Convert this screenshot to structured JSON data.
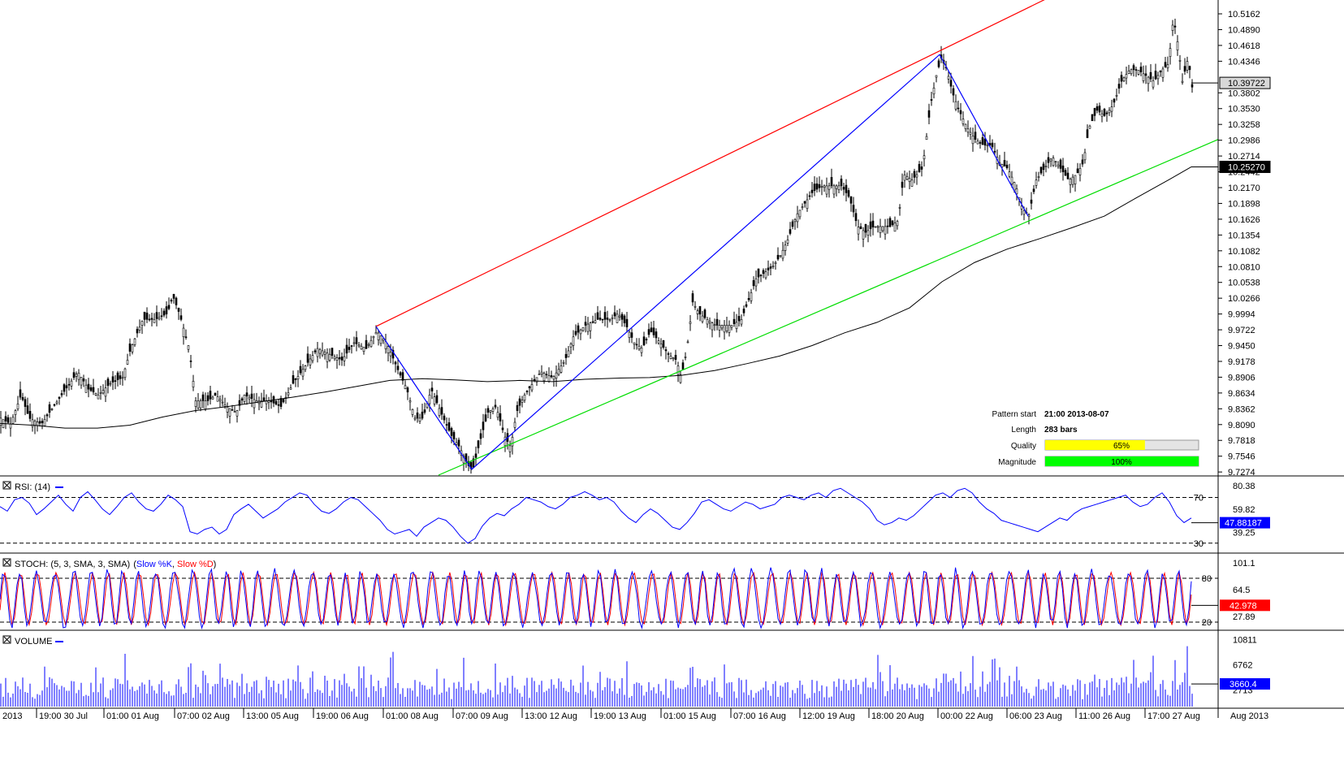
{
  "chart_data": [
    {
      "type": "candlestick",
      "panel": "price",
      "yaxis_ticks": [
        "10.5162",
        "10.4890",
        "10.4618",
        "10.4346",
        "10.3802",
        "10.3530",
        "10.3258",
        "10.2986",
        "10.2714",
        "10.2442",
        "10.2170",
        "10.1898",
        "10.1626",
        "10.1354",
        "10.1082",
        "10.0810",
        "10.0538",
        "10.0266",
        "9.9994",
        "9.9722",
        "9.9450",
        "9.9178",
        "9.8906",
        "9.8634",
        "9.8362",
        "9.8090",
        "9.7818",
        "9.7546",
        "9.7274"
      ],
      "ylim": [
        9.722,
        10.54
      ],
      "last_price": "10.39722",
      "ma_value": "10.25270",
      "path": [
        [
          0,
          9.82
        ],
        [
          12,
          9.81
        ],
        [
          25,
          9.86
        ],
        [
          35,
          9.82
        ],
        [
          50,
          9.81
        ],
        [
          65,
          9.84
        ],
        [
          80,
          9.87
        ],
        [
          95,
          9.9
        ],
        [
          108,
          9.87
        ],
        [
          120,
          9.86
        ],
        [
          135,
          9.88
        ],
        [
          150,
          9.89
        ],
        [
          160,
          9.94
        ],
        [
          175,
          9.99
        ],
        [
          190,
          9.99
        ],
        [
          205,
          10.0
        ],
        [
          212,
          10.03
        ],
        [
          220,
          10.0
        ],
        [
          232,
          9.94
        ],
        [
          240,
          9.85
        ],
        [
          255,
          9.85
        ],
        [
          265,
          9.86
        ],
        [
          278,
          9.84
        ],
        [
          290,
          9.83
        ],
        [
          300,
          9.86
        ],
        [
          315,
          9.85
        ],
        [
          330,
          9.85
        ],
        [
          345,
          9.84
        ],
        [
          360,
          9.88
        ],
        [
          375,
          9.91
        ],
        [
          390,
          9.94
        ],
        [
          405,
          9.93
        ],
        [
          420,
          9.92
        ],
        [
          435,
          9.95
        ],
        [
          450,
          9.94
        ],
        [
          463,
          9.97
        ],
        [
          475,
          9.95
        ],
        [
          490,
          9.9
        ],
        [
          500,
          9.87
        ],
        [
          510,
          9.82
        ],
        [
          520,
          9.82
        ],
        [
          530,
          9.87
        ],
        [
          545,
          9.82
        ],
        [
          555,
          9.79
        ],
        [
          565,
          9.77
        ],
        [
          575,
          9.74
        ],
        [
          581,
          9.73
        ],
        [
          590,
          9.78
        ],
        [
          600,
          9.83
        ],
        [
          610,
          9.84
        ],
        [
          620,
          9.79
        ],
        [
          628,
          9.77
        ],
        [
          635,
          9.83
        ],
        [
          645,
          9.86
        ],
        [
          655,
          9.88
        ],
        [
          665,
          9.9
        ],
        [
          680,
          9.89
        ],
        [
          695,
          9.92
        ],
        [
          705,
          9.96
        ],
        [
          720,
          9.98
        ],
        [
          735,
          9.99
        ],
        [
          750,
          9.99
        ],
        [
          760,
          10.0
        ],
        [
          770,
          9.98
        ],
        [
          780,
          9.95
        ],
        [
          790,
          9.94
        ],
        [
          800,
          9.97
        ],
        [
          812,
          9.95
        ],
        [
          822,
          9.93
        ],
        [
          832,
          9.92
        ],
        [
          838,
          9.89
        ],
        [
          845,
          9.94
        ],
        [
          852,
          10.02
        ],
        [
          860,
          10.0
        ],
        [
          870,
          9.99
        ],
        [
          880,
          9.98
        ],
        [
          890,
          9.98
        ],
        [
          900,
          9.98
        ],
        [
          912,
          9.99
        ],
        [
          920,
          10.02
        ],
        [
          930,
          10.06
        ],
        [
          940,
          10.07
        ],
        [
          950,
          10.08
        ],
        [
          960,
          10.1
        ],
        [
          970,
          10.13
        ],
        [
          980,
          10.17
        ],
        [
          990,
          10.19
        ],
        [
          1000,
          10.21
        ],
        [
          1012,
          10.22
        ],
        [
          1025,
          10.22
        ],
        [
          1035,
          10.22
        ],
        [
          1045,
          10.2
        ],
        [
          1055,
          10.15
        ],
        [
          1065,
          10.14
        ],
        [
          1075,
          10.15
        ],
        [
          1085,
          10.15
        ],
        [
          1095,
          10.15
        ],
        [
          1105,
          10.16
        ],
        [
          1112,
          10.24
        ],
        [
          1122,
          10.23
        ],
        [
          1135,
          10.25
        ],
        [
          1145,
          10.36
        ],
        [
          1152,
          10.41
        ],
        [
          1158,
          10.44
        ],
        [
          1165,
          10.42
        ],
        [
          1172,
          10.38
        ],
        [
          1180,
          10.35
        ],
        [
          1190,
          10.32
        ],
        [
          1200,
          10.3
        ],
        [
          1210,
          10.29
        ],
        [
          1220,
          10.29
        ],
        [
          1230,
          10.26
        ],
        [
          1240,
          10.25
        ],
        [
          1250,
          10.22
        ],
        [
          1258,
          10.18
        ],
        [
          1266,
          10.17
        ],
        [
          1275,
          10.23
        ],
        [
          1285,
          10.25
        ],
        [
          1295,
          10.27
        ],
        [
          1305,
          10.25
        ],
        [
          1315,
          10.23
        ],
        [
          1325,
          10.24
        ],
        [
          1333,
          10.26
        ],
        [
          1340,
          10.32
        ],
        [
          1350,
          10.35
        ],
        [
          1360,
          10.34
        ],
        [
          1370,
          10.36
        ],
        [
          1380,
          10.4
        ],
        [
          1390,
          10.42
        ],
        [
          1400,
          10.42
        ],
        [
          1410,
          10.41
        ],
        [
          1420,
          10.4
        ],
        [
          1430,
          10.42
        ],
        [
          1438,
          10.43
        ],
        [
          1444,
          10.51
        ],
        [
          1450,
          10.46
        ],
        [
          1455,
          10.4
        ],
        [
          1462,
          10.44
        ],
        [
          1467,
          10.39
        ]
      ],
      "ma_path": [
        [
          0,
          9.811
        ],
        [
          40,
          9.808
        ],
        [
          80,
          9.803
        ],
        [
          120,
          9.803
        ],
        [
          160,
          9.808
        ],
        [
          200,
          9.822
        ],
        [
          240,
          9.833
        ],
        [
          280,
          9.84
        ],
        [
          320,
          9.848
        ],
        [
          360,
          9.856
        ],
        [
          400,
          9.865
        ],
        [
          440,
          9.875
        ],
        [
          480,
          9.885
        ],
        [
          520,
          9.888
        ],
        [
          560,
          9.886
        ],
        [
          600,
          9.883
        ],
        [
          640,
          9.885
        ],
        [
          680,
          9.883
        ],
        [
          720,
          9.887
        ],
        [
          760,
          9.889
        ],
        [
          800,
          9.89
        ],
        [
          840,
          9.894
        ],
        [
          880,
          9.902
        ],
        [
          920,
          9.914
        ],
        [
          960,
          9.927
        ],
        [
          1000,
          9.945
        ],
        [
          1040,
          9.967
        ],
        [
          1080,
          9.985
        ],
        [
          1120,
          10.01
        ],
        [
          1160,
          10.055
        ],
        [
          1200,
          10.088
        ],
        [
          1240,
          10.111
        ],
        [
          1280,
          10.129
        ],
        [
          1320,
          10.148
        ],
        [
          1360,
          10.168
        ],
        [
          1400,
          10.2
        ],
        [
          1440,
          10.231
        ],
        [
          1467,
          10.2527
        ]
      ],
      "blue_zigzag": [
        [
          463,
          9.978
        ],
        [
          581,
          9.732
        ],
        [
          1157,
          10.446
        ],
        [
          1266,
          10.168
        ]
      ],
      "red_line": [
        [
          463,
          9.978
        ],
        [
          1300,
          10.55
        ]
      ],
      "green_line": [
        [
          540,
          9.722
        ],
        [
          1500,
          10.3
        ]
      ]
    },
    {
      "type": "line",
      "panel": "rsi",
      "title": "RSI: (14)",
      "yaxis_ticks": [
        "80.38",
        "59.82",
        "39.25"
      ],
      "levels": [
        "70",
        "30"
      ],
      "last_value": "47.88187",
      "ylim": [
        22,
        86
      ],
      "values": [
        62,
        58,
        68,
        70,
        65,
        55,
        60,
        66,
        72,
        64,
        58,
        70,
        75,
        68,
        60,
        55,
        62,
        70,
        74,
        66,
        60,
        58,
        64,
        72,
        68,
        62,
        40,
        38,
        42,
        44,
        38,
        42,
        55,
        60,
        64,
        58,
        52,
        56,
        60,
        66,
        70,
        74,
        72,
        64,
        58,
        56,
        60,
        66,
        70,
        68,
        62,
        56,
        50,
        42,
        38,
        40,
        42,
        36,
        44,
        48,
        52,
        50,
        44,
        36,
        30,
        34,
        45,
        52,
        56,
        54,
        60,
        64,
        70,
        68,
        66,
        62,
        60,
        64,
        70,
        72,
        75,
        72,
        68,
        70,
        66,
        58,
        52,
        48,
        55,
        60,
        56,
        50,
        44,
        42,
        48,
        56,
        66,
        68,
        64,
        60,
        58,
        62,
        66,
        64,
        60,
        62,
        64,
        70,
        72,
        70,
        68,
        72,
        74,
        70,
        76,
        78,
        74,
        70,
        66,
        60,
        50,
        46,
        48,
        52,
        50,
        54,
        60,
        66,
        72,
        74,
        70,
        76,
        78,
        74,
        66,
        60,
        56,
        50,
        48,
        46,
        44,
        42,
        40,
        44,
        48,
        52,
        50,
        56,
        60,
        62,
        64,
        66,
        68,
        70,
        72,
        66,
        62,
        64,
        70,
        74,
        66,
        54,
        48,
        52
      ]
    },
    {
      "type": "line",
      "panel": "stoch",
      "title": "STOCH: (5, 3, SMA, 3, SMA)",
      "legend": [
        "Slow %K",
        "Slow %D"
      ],
      "yaxis_ticks": [
        "101.1",
        "64.5",
        "27.89"
      ],
      "levels": [
        "80",
        "20"
      ],
      "last_value": "42.978",
      "ylim": [
        10,
        110
      ],
      "cycles": 70
    },
    {
      "type": "bar",
      "panel": "volume",
      "title": "VOLUME",
      "yaxis_ticks": [
        "10811",
        "6762",
        "2713"
      ],
      "last_value": "3660.4",
      "ylim": [
        0,
        11800
      ]
    }
  ],
  "x_axis": {
    "ticks": [
      "2013",
      "19:00 30 Jul",
      "01:00 01 Aug",
      "07:00 02 Aug",
      "13:00 05 Aug",
      "19:00 06 Aug",
      "01:00 08 Aug",
      "07:00 09 Aug",
      "13:00 12 Aug",
      "19:00 13 Aug",
      "01:00 15 Aug",
      "07:00 16 Aug",
      "12:00 19 Aug",
      "18:00 20 Aug",
      "00:00 22 Aug",
      "06:00 23 Aug",
      "11:00 26 Aug",
      "17:00 27 Aug"
    ],
    "right_label": "Aug 2013"
  },
  "pattern_info": {
    "pattern_start_label": "Pattern start",
    "pattern_start_value": "21:00 2013-08-07",
    "length_label": "Length",
    "length_value": "283 bars",
    "quality_label": "Quality",
    "quality_value": "65%",
    "quality_fraction": 0.65,
    "magnitude_label": "Magnitude",
    "magnitude_value": "100%",
    "magnitude_fraction": 1.0
  },
  "colors": {
    "red_line": "#ff0000",
    "blue_line": "#0000ff",
    "green_line": "#00dd00",
    "ma_line": "#000000",
    "quality_fill": "#ffff00",
    "magnitude_fill": "#00ff00",
    "rsi_tag": "#0000ff",
    "stoch_tag": "#ff0000"
  }
}
